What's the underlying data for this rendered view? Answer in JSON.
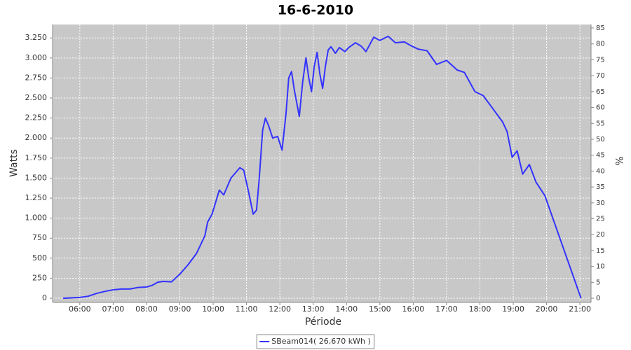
{
  "chart_data": {
    "type": "line",
    "title": "16-6-2010",
    "x_label": "Période",
    "y_label": "Watts",
    "y2_label": "%",
    "x": [
      "05:30",
      "05:45",
      "06:00",
      "06:15",
      "06:30",
      "06:45",
      "07:00",
      "07:15",
      "07:30",
      "07:45",
      "08:00",
      "08:10",
      "08:20",
      "08:30",
      "08:45",
      "09:00",
      "09:15",
      "09:30",
      "09:45",
      "09:50",
      "09:58",
      "10:11",
      "10:19",
      "10:32",
      "10:48",
      "10:55",
      "11:03",
      "11:12",
      "11:18",
      "11:23",
      "11:29",
      "11:34",
      "11:40",
      "11:47",
      "11:56",
      "12:04",
      "12:11",
      "12:16",
      "12:21",
      "12:26",
      "12:35",
      "12:41",
      "12:47",
      "12:52",
      "12:57",
      "13:02",
      "13:07",
      "13:12",
      "13:17",
      "13:22",
      "13:27",
      "13:32",
      "13:40",
      "13:47",
      "13:57",
      "14:04",
      "14:16",
      "14:26",
      "14:35",
      "14:49",
      "15:00",
      "15:15",
      "15:28",
      "15:44",
      "15:57",
      "16:09",
      "16:25",
      "16:42",
      "17:00",
      "17:19",
      "17:32",
      "17:51",
      "18:06",
      "18:22",
      "18:41",
      "18:49",
      "18:58",
      "19:07",
      "19:17",
      "19:29",
      "19:41",
      "19:57",
      "21:02"
    ],
    "series": [
      {
        "name": "SBeam014( 26,670 kWh )",
        "color": "#3333ff",
        "values": [
          0,
          5,
          10,
          25,
          60,
          85,
          105,
          115,
          115,
          135,
          140,
          160,
          200,
          210,
          205,
          300,
          420,
          560,
          780,
          950,
          1050,
          1350,
          1290,
          1500,
          1630,
          1600,
          1350,
          1050,
          1100,
          1500,
          2100,
          2250,
          2150,
          2000,
          2020,
          1850,
          2300,
          2750,
          2830,
          2600,
          2270,
          2700,
          3000,
          2750,
          2580,
          2900,
          3070,
          2800,
          2620,
          2900,
          3100,
          3140,
          3060,
          3130,
          3080,
          3130,
          3190,
          3150,
          3080,
          3260,
          3220,
          3270,
          3190,
          3200,
          3150,
          3110,
          3090,
          2920,
          2970,
          2850,
          2820,
          2580,
          2530,
          2380,
          2200,
          2080,
          1760,
          1840,
          1550,
          1670,
          1450,
          1280,
          0
        ]
      }
    ],
    "xlim": [
      "05:11",
      "21:20"
    ],
    "xticks": [
      "06:00",
      "07:00",
      "08:00",
      "09:00",
      "10:00",
      "11:00",
      "12:00",
      "13:00",
      "14:00",
      "15:00",
      "16:00",
      "17:00",
      "18:00",
      "19:00",
      "20:00",
      "21:00"
    ],
    "ylim": [
      -52,
      3418
    ],
    "yticks": [
      0,
      250,
      500,
      750,
      {
        "value": 1000,
        "label": "1.000"
      },
      {
        "value": 1250,
        "label": "1.250"
      },
      {
        "value": 1500,
        "label": "1.500"
      },
      {
        "value": 1750,
        "label": "1.750"
      },
      {
        "value": 2000,
        "label": "2.000"
      },
      {
        "value": 2250,
        "label": "2.250"
      },
      {
        "value": 2500,
        "label": "2.500"
      },
      {
        "value": 2750,
        "label": "2.750"
      },
      {
        "value": 3000,
        "label": "3.000"
      },
      {
        "value": 3250,
        "label": "3.250"
      }
    ],
    "y2lim": [
      -1.3,
      86.1
    ],
    "y2ticks": [
      0,
      5,
      10,
      15,
      20,
      25,
      30,
      35,
      40,
      45,
      50,
      55,
      60,
      65,
      70,
      75,
      80,
      85
    ],
    "grid": true
  }
}
